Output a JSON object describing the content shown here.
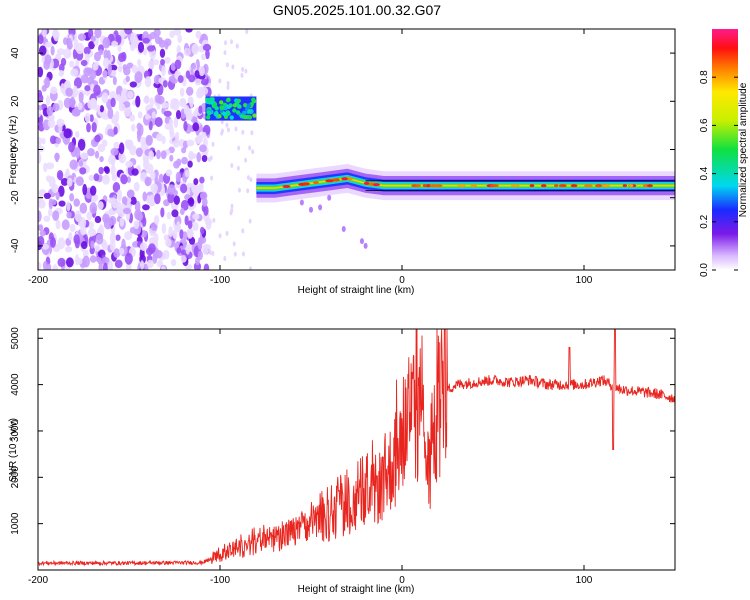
{
  "title": "GN05.2025.101.00.32.G07",
  "chart_data": [
    {
      "type": "heatmap",
      "xlabel": "Height of straight line (km)",
      "ylabel": "Frequency (Hz)",
      "xlim": [
        -200,
        150
      ],
      "ylim": [
        -50,
        50
      ],
      "xticks": [
        "-200",
        "-100",
        "0",
        "100"
      ],
      "yticks": [
        "-40",
        "-20",
        "0",
        "20",
        "40"
      ],
      "colorbar": {
        "label": "Normalized spectral amplitude",
        "range": [
          0,
          1
        ],
        "ticks": [
          "0.0",
          "0.2",
          "0.4",
          "0.6",
          "0.8"
        ]
      },
      "regions": [
        {
          "x": [
            -200,
            -106
          ],
          "y": [
            -50,
            50
          ],
          "amplitude": 0.05,
          "note": "broadband noise"
        },
        {
          "x": [
            -108,
            -80
          ],
          "y": [
            12,
            22
          ],
          "amplitude": 0.3
        },
        {
          "x": [
            -80,
            150
          ],
          "y": [
            -20,
            -10
          ],
          "amplitude": 0.5
        }
      ],
      "trace": {
        "x": [
          -80,
          -70,
          -60,
          -50,
          -40,
          -30,
          -20,
          -10,
          0,
          20,
          50,
          80,
          100,
          120,
          150
        ],
        "y": [
          -16,
          -16,
          -15,
          -14,
          -13,
          -12,
          -14,
          -15,
          -15,
          -15,
          -15,
          -15,
          -15,
          -15,
          -15
        ]
      }
    },
    {
      "type": "line",
      "xlabel": "Height of straight line (km)",
      "ylabel": "SNR (10 * v/v)",
      "xlim": [
        -200,
        150
      ],
      "ylim": [
        0,
        5200
      ],
      "xticks": [
        "-200",
        "-100",
        "0",
        "100"
      ],
      "yticks": [
        "1000",
        "2000",
        "3000",
        "4000",
        "5000"
      ],
      "series": [
        {
          "color": "#e8251f",
          "x": [
            -200,
            -150,
            -110,
            -100,
            -90,
            -80,
            -70,
            -60,
            -50,
            -40,
            -30,
            -20,
            -10,
            0,
            5,
            10,
            15,
            20,
            25,
            30,
            40,
            50,
            60,
            70,
            80,
            90,
            100,
            110,
            120,
            130,
            140,
            150
          ],
          "y": [
            150,
            150,
            160,
            300,
            450,
            550,
            700,
            800,
            950,
            1100,
            1300,
            1500,
            1900,
            2700,
            3300,
            3400,
            2000,
            3400,
            3900,
            4000,
            4050,
            4100,
            4050,
            4100,
            4000,
            4000,
            4000,
            4100,
            3900,
            3850,
            3800,
            3700
          ]
        }
      ]
    }
  ]
}
